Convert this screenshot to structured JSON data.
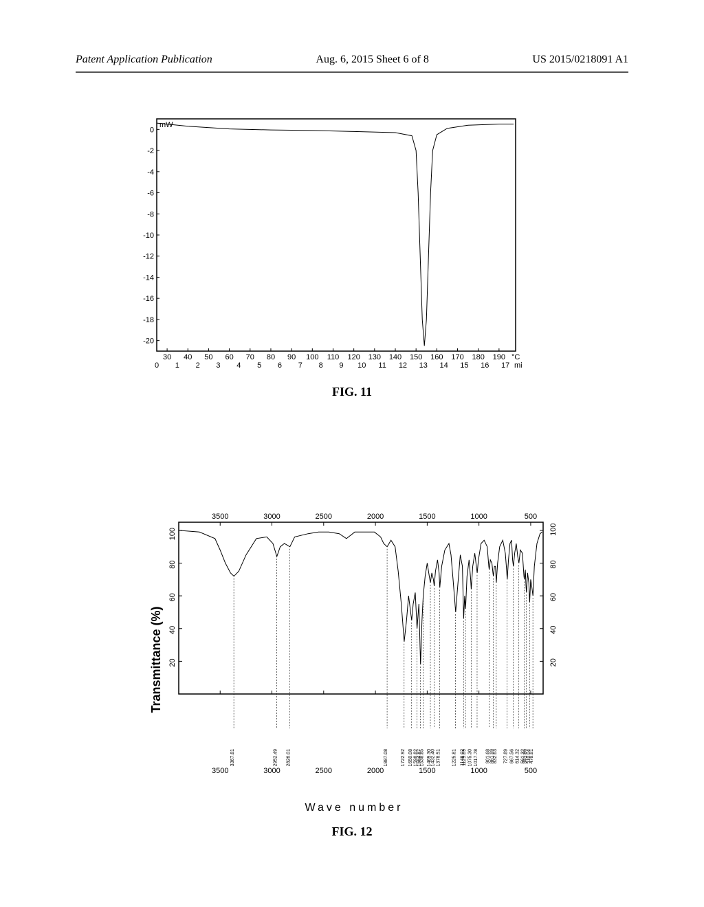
{
  "header": {
    "left": "Patent Application Publication",
    "center": "Aug. 6, 2015  Sheet 6 of 8",
    "right": "US 2015/0218091 A1"
  },
  "fig11": {
    "caption": "FIG. 11",
    "type": "line",
    "background_color": "#ffffff",
    "trace_color": "#000000",
    "frame_color": "#000000",
    "y_unit_label": "mW",
    "yticks": [
      0,
      -2,
      -4,
      -6,
      -8,
      -10,
      -12,
      -14,
      -16,
      -18,
      -20
    ],
    "ylim": [
      -21,
      1
    ],
    "xticks_top": [
      30,
      40,
      50,
      60,
      70,
      80,
      90,
      100,
      110,
      120,
      130,
      140,
      150,
      160,
      170,
      180,
      190
    ],
    "x_top_unit": "°C",
    "xticks_bottom": [
      0,
      1,
      2,
      3,
      4,
      5,
      6,
      7,
      8,
      9,
      10,
      11,
      12,
      13,
      14,
      15,
      16,
      17
    ],
    "x_bottom_unit": "min",
    "xlim_top": [
      25,
      198
    ],
    "xlim_bottom": [
      0,
      17.5
    ],
    "trace": [
      [
        25,
        0.6
      ],
      [
        40,
        0.3
      ],
      [
        60,
        0.05
      ],
      [
        80,
        -0.05
      ],
      [
        100,
        -0.1
      ],
      [
        120,
        -0.2
      ],
      [
        140,
        -0.3
      ],
      [
        148,
        -0.6
      ],
      [
        150,
        -2
      ],
      [
        151,
        -6
      ],
      [
        152,
        -12
      ],
      [
        153,
        -18
      ],
      [
        154,
        -20.5
      ],
      [
        155,
        -18
      ],
      [
        156,
        -12
      ],
      [
        157,
        -6
      ],
      [
        158,
        -2
      ],
      [
        160,
        -0.5
      ],
      [
        165,
        0.1
      ],
      [
        175,
        0.4
      ],
      [
        190,
        0.5
      ],
      [
        197,
        0.5
      ]
    ]
  },
  "fig12": {
    "caption": "FIG. 12",
    "type": "line",
    "ylabel": "Transmittance (%)",
    "xlabel": "Wave  number",
    "background_color": "#ffffff",
    "trace_color": "#000000",
    "frame_color": "#000000",
    "xticks": [
      3500,
      3000,
      2500,
      2000,
      1500,
      1000,
      500
    ],
    "yticks": [
      100,
      80,
      60,
      40,
      20
    ],
    "xlim": [
      3900,
      380
    ],
    "ylim": [
      0,
      105
    ],
    "peak_labels": [
      "3367.81",
      "2952.49",
      "2826.01",
      "1887.08",
      "1722.92",
      "1650.08",
      "1598.82",
      "1564.87",
      "1538.85",
      "1469.30",
      "1432.40",
      "1378.51",
      "1225.81",
      "1148.02",
      "1129.89",
      "1075.30",
      "1017.78",
      "901.68",
      "861.99",
      "832.63",
      "727.89",
      "667.56",
      "614.32",
      "561.32",
      "541.86",
      "510.04",
      "478.81"
    ],
    "trace": [
      [
        3900,
        100
      ],
      [
        3700,
        99
      ],
      [
        3550,
        95
      ],
      [
        3500,
        88
      ],
      [
        3450,
        80
      ],
      [
        3400,
        74
      ],
      [
        3367,
        72
      ],
      [
        3320,
        75
      ],
      [
        3250,
        85
      ],
      [
        3150,
        95
      ],
      [
        3050,
        96
      ],
      [
        2990,
        92
      ],
      [
        2952,
        84
      ],
      [
        2920,
        90
      ],
      [
        2880,
        92
      ],
      [
        2826,
        90
      ],
      [
        2780,
        96
      ],
      [
        2650,
        98
      ],
      [
        2550,
        99
      ],
      [
        2450,
        99
      ],
      [
        2350,
        98
      ],
      [
        2280,
        95
      ],
      [
        2200,
        99
      ],
      [
        2100,
        99
      ],
      [
        2010,
        99
      ],
      [
        1950,
        96
      ],
      [
        1920,
        92
      ],
      [
        1887,
        90
      ],
      [
        1850,
        94
      ],
      [
        1810,
        90
      ],
      [
        1780,
        75
      ],
      [
        1750,
        55
      ],
      [
        1722,
        32
      ],
      [
        1700,
        45
      ],
      [
        1680,
        60
      ],
      [
        1660,
        50
      ],
      [
        1650,
        45
      ],
      [
        1635,
        55
      ],
      [
        1615,
        62
      ],
      [
        1598,
        40
      ],
      [
        1580,
        55
      ],
      [
        1564,
        18
      ],
      [
        1550,
        45
      ],
      [
        1538,
        60
      ],
      [
        1520,
        72
      ],
      [
        1500,
        80
      ],
      [
        1480,
        72
      ],
      [
        1469,
        68
      ],
      [
        1455,
        74
      ],
      [
        1440,
        70
      ],
      [
        1432,
        66
      ],
      [
        1420,
        75
      ],
      [
        1400,
        82
      ],
      [
        1385,
        74
      ],
      [
        1378,
        65
      ],
      [
        1360,
        78
      ],
      [
        1330,
        88
      ],
      [
        1290,
        92
      ],
      [
        1270,
        85
      ],
      [
        1250,
        70
      ],
      [
        1235,
        58
      ],
      [
        1225,
        50
      ],
      [
        1210,
        62
      ],
      [
        1180,
        85
      ],
      [
        1160,
        78
      ],
      [
        1148,
        46
      ],
      [
        1138,
        60
      ],
      [
        1129,
        52
      ],
      [
        1115,
        72
      ],
      [
        1095,
        82
      ],
      [
        1080,
        70
      ],
      [
        1075,
        64
      ],
      [
        1060,
        78
      ],
      [
        1040,
        86
      ],
      [
        1025,
        78
      ],
      [
        1017,
        74
      ],
      [
        1005,
        82
      ],
      [
        980,
        92
      ],
      [
        950,
        94
      ],
      [
        920,
        90
      ],
      [
        905,
        78
      ],
      [
        901,
        76
      ],
      [
        890,
        82
      ],
      [
        875,
        80
      ],
      [
        865,
        74
      ],
      [
        861,
        72
      ],
      [
        850,
        78
      ],
      [
        840,
        78
      ],
      [
        832,
        68
      ],
      [
        820,
        80
      ],
      [
        800,
        90
      ],
      [
        770,
        94
      ],
      [
        745,
        86
      ],
      [
        735,
        78
      ],
      [
        727,
        70
      ],
      [
        715,
        82
      ],
      [
        700,
        92
      ],
      [
        685,
        94
      ],
      [
        675,
        82
      ],
      [
        667,
        78
      ],
      [
        655,
        86
      ],
      [
        640,
        92
      ],
      [
        625,
        84
      ],
      [
        614,
        80
      ],
      [
        600,
        88
      ],
      [
        580,
        86
      ],
      [
        565,
        72
      ],
      [
        561,
        70
      ],
      [
        552,
        76
      ],
      [
        545,
        65
      ],
      [
        541,
        62
      ],
      [
        530,
        74
      ],
      [
        518,
        68
      ],
      [
        510,
        56
      ],
      [
        500,
        70
      ],
      [
        490,
        66
      ],
      [
        478,
        60
      ],
      [
        465,
        78
      ],
      [
        440,
        92
      ],
      [
        410,
        98
      ],
      [
        390,
        99
      ]
    ]
  }
}
